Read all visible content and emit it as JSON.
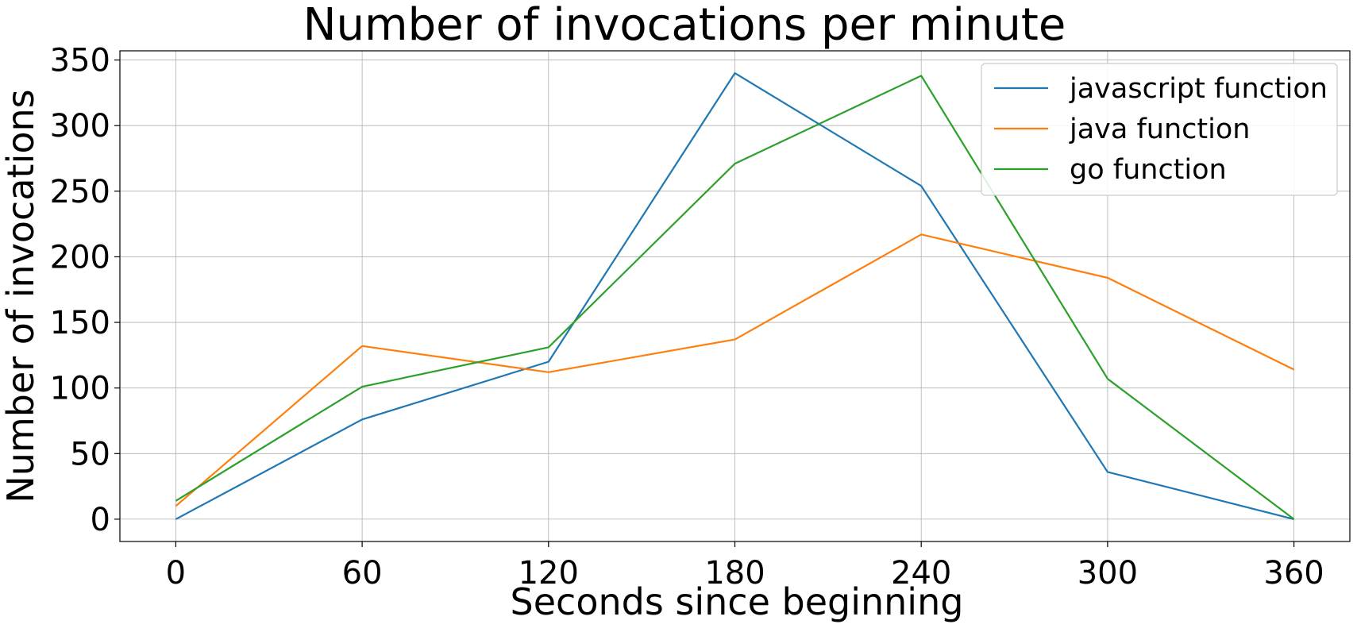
{
  "chart_data": {
    "type": "line",
    "title": "Number of invocations per minute",
    "xlabel": "Seconds since beginning",
    "ylabel": "Number of invocations",
    "x": [
      0,
      60,
      120,
      180,
      240,
      300,
      360
    ],
    "xticks": [
      "0",
      "60",
      "120",
      "180",
      "240",
      "300",
      "360"
    ],
    "yticks": [
      "0",
      "50",
      "100",
      "150",
      "200",
      "250",
      "300",
      "350"
    ],
    "xlim": [
      -18,
      378
    ],
    "ylim": [
      -17,
      357
    ],
    "grid": true,
    "legend_position": "top-right",
    "series": [
      {
        "name": "javascript function",
        "color": "#1f77b4",
        "values": [
          0,
          76,
          120,
          340,
          254,
          36,
          0
        ]
      },
      {
        "name": "java function",
        "color": "#ff7f0e",
        "values": [
          10,
          132,
          112,
          137,
          217,
          184,
          114
        ]
      },
      {
        "name": "go function",
        "color": "#2ca02c",
        "values": [
          14,
          101,
          131,
          271,
          338,
          107,
          0
        ]
      }
    ]
  }
}
